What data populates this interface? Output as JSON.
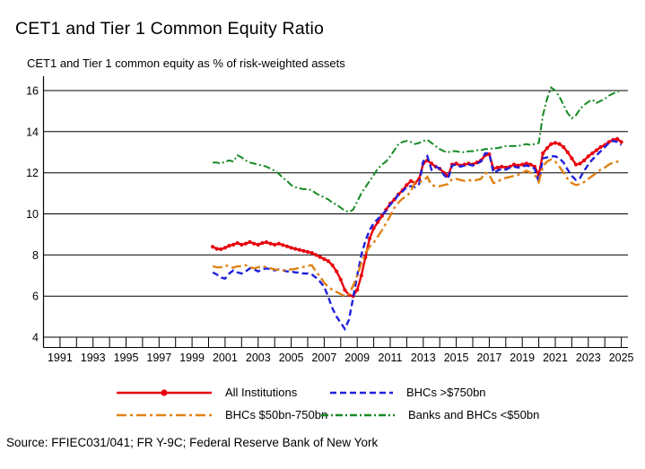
{
  "title": "CET1 and Tier 1 Common Equity Ratio",
  "source_note": "Source: FFIEC031/041; FR Y-9C; Federal Reserve Bank of New York",
  "colors": {
    "all_institutions": "#e8000d",
    "bhcs_gt_750bn": "#2020dd",
    "bhcs_50_750bn": "#e08214",
    "banks_lt_50bn": "#168a24",
    "axis": "#000000"
  },
  "chart_data": {
    "type": "line",
    "title": "CET1 and Tier 1 Common Equity Ratio",
    "subtitle": "CET1 and Tier 1 common equity as % of risk-weighted assets",
    "xlabel": "",
    "ylabel": "",
    "xlim": [
      1990,
      2025.4
    ],
    "ylim": [
      4,
      16
    ],
    "y_ticks": [
      4,
      6,
      8,
      10,
      12,
      14,
      16
    ],
    "x_ticks_labeled": [
      1991,
      1993,
      1995,
      1997,
      1999,
      2001,
      2003,
      2005,
      2007,
      2009,
      2011,
      2013,
      2015,
      2017,
      2019,
      2021,
      2023,
      2025
    ],
    "x_minor_tick_step": 1,
    "grid": "horizontal",
    "legend_position": "bottom",
    "x_start": 2000.25,
    "x_step": 0.25,
    "series": [
      {
        "name": "All Institutions",
        "color": "#e8000d",
        "style": "solid",
        "marker": "circle",
        "width": 2.4,
        "values": [
          8.4,
          8.3,
          8.28,
          8.35,
          8.45,
          8.5,
          8.58,
          8.5,
          8.55,
          8.63,
          8.55,
          8.5,
          8.58,
          8.62,
          8.55,
          8.5,
          8.55,
          8.48,
          8.42,
          8.35,
          8.3,
          8.25,
          8.2,
          8.15,
          8.1,
          8.0,
          7.9,
          7.8,
          7.7,
          7.5,
          7.2,
          6.8,
          6.3,
          6.05,
          6.0,
          6.3,
          7.0,
          7.9,
          8.8,
          9.3,
          9.6,
          9.9,
          10.2,
          10.5,
          10.7,
          10.95,
          11.15,
          11.4,
          11.6,
          11.5,
          11.7,
          12.45,
          12.6,
          12.45,
          12.3,
          12.2,
          12.0,
          11.85,
          12.4,
          12.45,
          12.35,
          12.4,
          12.45,
          12.4,
          12.5,
          12.6,
          12.85,
          12.9,
          12.2,
          12.25,
          12.3,
          12.25,
          12.3,
          12.4,
          12.35,
          12.4,
          12.45,
          12.4,
          12.3,
          11.9,
          12.95,
          13.2,
          13.4,
          13.45,
          13.4,
          13.25,
          13.0,
          12.7,
          12.4,
          12.45,
          12.6,
          12.8,
          12.95,
          13.1,
          13.25,
          13.35,
          13.5,
          13.6,
          13.65,
          13.5
        ]
      },
      {
        "name": "BHCs >$750bn",
        "color": "#2020dd",
        "style": "dashed",
        "marker": "none",
        "width": 2.4,
        "values": [
          7.15,
          7.05,
          6.9,
          6.85,
          7.1,
          7.25,
          7.15,
          7.1,
          7.2,
          7.35,
          7.3,
          7.2,
          7.3,
          7.35,
          7.3,
          7.25,
          7.3,
          7.25,
          7.2,
          7.2,
          7.15,
          7.15,
          7.1,
          7.1,
          7.05,
          6.9,
          6.7,
          6.45,
          5.95,
          5.4,
          5.0,
          4.7,
          4.4,
          4.85,
          5.9,
          7.0,
          8.0,
          8.7,
          9.2,
          9.55,
          9.75,
          9.95,
          10.15,
          10.45,
          10.65,
          10.95,
          11.1,
          11.3,
          11.35,
          11.3,
          11.45,
          12.55,
          12.8,
          12.15,
          12.3,
          12.2,
          11.9,
          11.7,
          12.35,
          12.4,
          12.3,
          12.35,
          12.4,
          12.35,
          12.45,
          12.55,
          12.95,
          12.95,
          12.0,
          12.1,
          12.2,
          12.15,
          12.25,
          12.3,
          12.25,
          12.3,
          12.35,
          12.3,
          12.2,
          11.55,
          12.7,
          12.75,
          12.8,
          12.8,
          12.7,
          12.5,
          12.15,
          11.85,
          11.65,
          11.75,
          12.1,
          12.4,
          12.65,
          12.85,
          13.05,
          13.25,
          13.45,
          13.55,
          13.5,
          13.35
        ]
      },
      {
        "name": "BHCs $50bn-750bn",
        "color": "#e08214",
        "style": "dash-dot",
        "marker": "none",
        "width": 2.4,
        "values": [
          7.45,
          7.4,
          7.4,
          7.5,
          7.45,
          7.38,
          7.45,
          7.45,
          7.5,
          7.4,
          7.35,
          7.4,
          7.45,
          7.4,
          7.35,
          7.3,
          7.28,
          7.25,
          7.28,
          7.3,
          7.32,
          7.38,
          7.42,
          7.48,
          7.5,
          7.2,
          6.95,
          6.65,
          6.45,
          6.3,
          6.2,
          6.1,
          6.0,
          6.1,
          6.5,
          7.0,
          7.6,
          8.1,
          8.4,
          8.6,
          8.9,
          9.2,
          9.55,
          9.9,
          10.3,
          10.55,
          10.75,
          10.85,
          11.1,
          11.55,
          11.55,
          11.6,
          11.8,
          11.4,
          11.35,
          11.35,
          11.4,
          11.45,
          11.7,
          11.7,
          11.65,
          11.6,
          11.65,
          11.6,
          11.65,
          11.7,
          12.0,
          11.9,
          11.5,
          11.55,
          11.7,
          11.75,
          11.8,
          11.85,
          11.9,
          12.0,
          12.1,
          12.0,
          11.9,
          11.55,
          12.3,
          12.55,
          12.65,
          12.55,
          12.3,
          12.0,
          11.7,
          11.5,
          11.4,
          11.45,
          11.55,
          11.7,
          11.85,
          12.0,
          12.15,
          12.25,
          12.4,
          12.5,
          12.55,
          12.45
        ]
      },
      {
        "name": "Banks and BHCs <$50bn",
        "color": "#168a24",
        "style": "dash-dot-dot",
        "marker": "none",
        "width": 2,
        "values": [
          12.5,
          12.5,
          12.45,
          12.55,
          12.6,
          12.55,
          12.85,
          12.75,
          12.6,
          12.5,
          12.45,
          12.4,
          12.35,
          12.3,
          12.2,
          12.1,
          11.95,
          11.75,
          11.6,
          11.4,
          11.3,
          11.25,
          11.2,
          11.2,
          11.15,
          11.0,
          10.9,
          10.8,
          10.7,
          10.55,
          10.45,
          10.3,
          10.15,
          10.1,
          10.2,
          10.6,
          11.0,
          11.3,
          11.6,
          11.9,
          12.2,
          12.4,
          12.55,
          12.8,
          13.1,
          13.4,
          13.5,
          13.55,
          13.5,
          13.4,
          13.45,
          13.55,
          13.6,
          13.45,
          13.3,
          13.15,
          13.05,
          13.0,
          13.05,
          13.05,
          13.0,
          13.0,
          13.05,
          13.05,
          13.1,
          13.1,
          13.15,
          13.15,
          13.2,
          13.2,
          13.25,
          13.3,
          13.3,
          13.3,
          13.3,
          13.35,
          13.4,
          13.35,
          13.4,
          13.45,
          14.8,
          15.6,
          16.15,
          16.0,
          15.7,
          15.3,
          14.9,
          14.65,
          14.8,
          15.1,
          15.3,
          15.45,
          15.55,
          15.4,
          15.5,
          15.6,
          15.75,
          15.85,
          15.95,
          16.0
        ]
      }
    ]
  }
}
